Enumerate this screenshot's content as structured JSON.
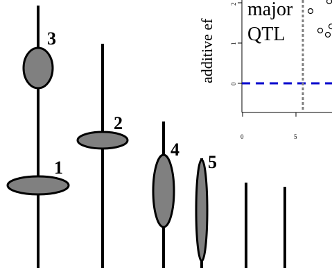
{
  "qtl_labels": {
    "q1": "1",
    "q2": "2",
    "q3": "3",
    "q4": "4",
    "q5": "5"
  },
  "inset": {
    "annotation_line1": "major",
    "annotation_line2": "QTL",
    "ylabel": "additive ef",
    "yticks": [
      "0",
      "1",
      "2"
    ],
    "xticks": [
      "0",
      "5"
    ]
  },
  "colors": {
    "qtl_fill": "#808080",
    "reference_line": "#0000cc",
    "threshold_line": "#808080"
  }
}
